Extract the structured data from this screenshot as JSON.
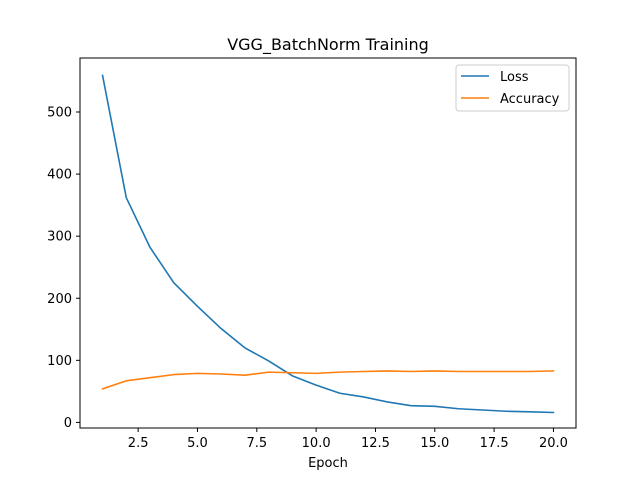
{
  "chart_data": {
    "type": "line",
    "title": "VGG_BatchNorm Training",
    "xlabel": "Epoch",
    "ylabel": "",
    "x": [
      1,
      2,
      3,
      4,
      5,
      6,
      7,
      8,
      9,
      10,
      11,
      12,
      13,
      14,
      15,
      16,
      17,
      18,
      19,
      20
    ],
    "xlim": [
      0.05,
      20.95
    ],
    "ylim": [
      -9,
      587
    ],
    "xticks": [
      2.5,
      5.0,
      7.5,
      10.0,
      12.5,
      15.0,
      17.5,
      20.0
    ],
    "xtick_labels": [
      "2.5",
      "5.0",
      "7.5",
      "10.0",
      "12.5",
      "15.0",
      "17.5",
      "20.0"
    ],
    "yticks": [
      0,
      100,
      200,
      300,
      400,
      500
    ],
    "ytick_labels": [
      "0",
      "100",
      "200",
      "300",
      "400",
      "500"
    ],
    "grid": false,
    "legend_position": "top-right",
    "series": [
      {
        "name": "Loss",
        "color": "#1f77b4",
        "values": [
          559,
          362,
          282,
          225,
          187,
          151,
          120,
          99,
          75,
          60,
          47,
          41,
          33,
          27,
          26,
          22,
          20,
          18,
          17,
          16
        ]
      },
      {
        "name": "Accuracy",
        "color": "#ff7f0e",
        "values": [
          54,
          67,
          72,
          77,
          79,
          78,
          76,
          81,
          80,
          79,
          81,
          82,
          83,
          82,
          83,
          82,
          82,
          82,
          82,
          83
        ]
      }
    ]
  }
}
